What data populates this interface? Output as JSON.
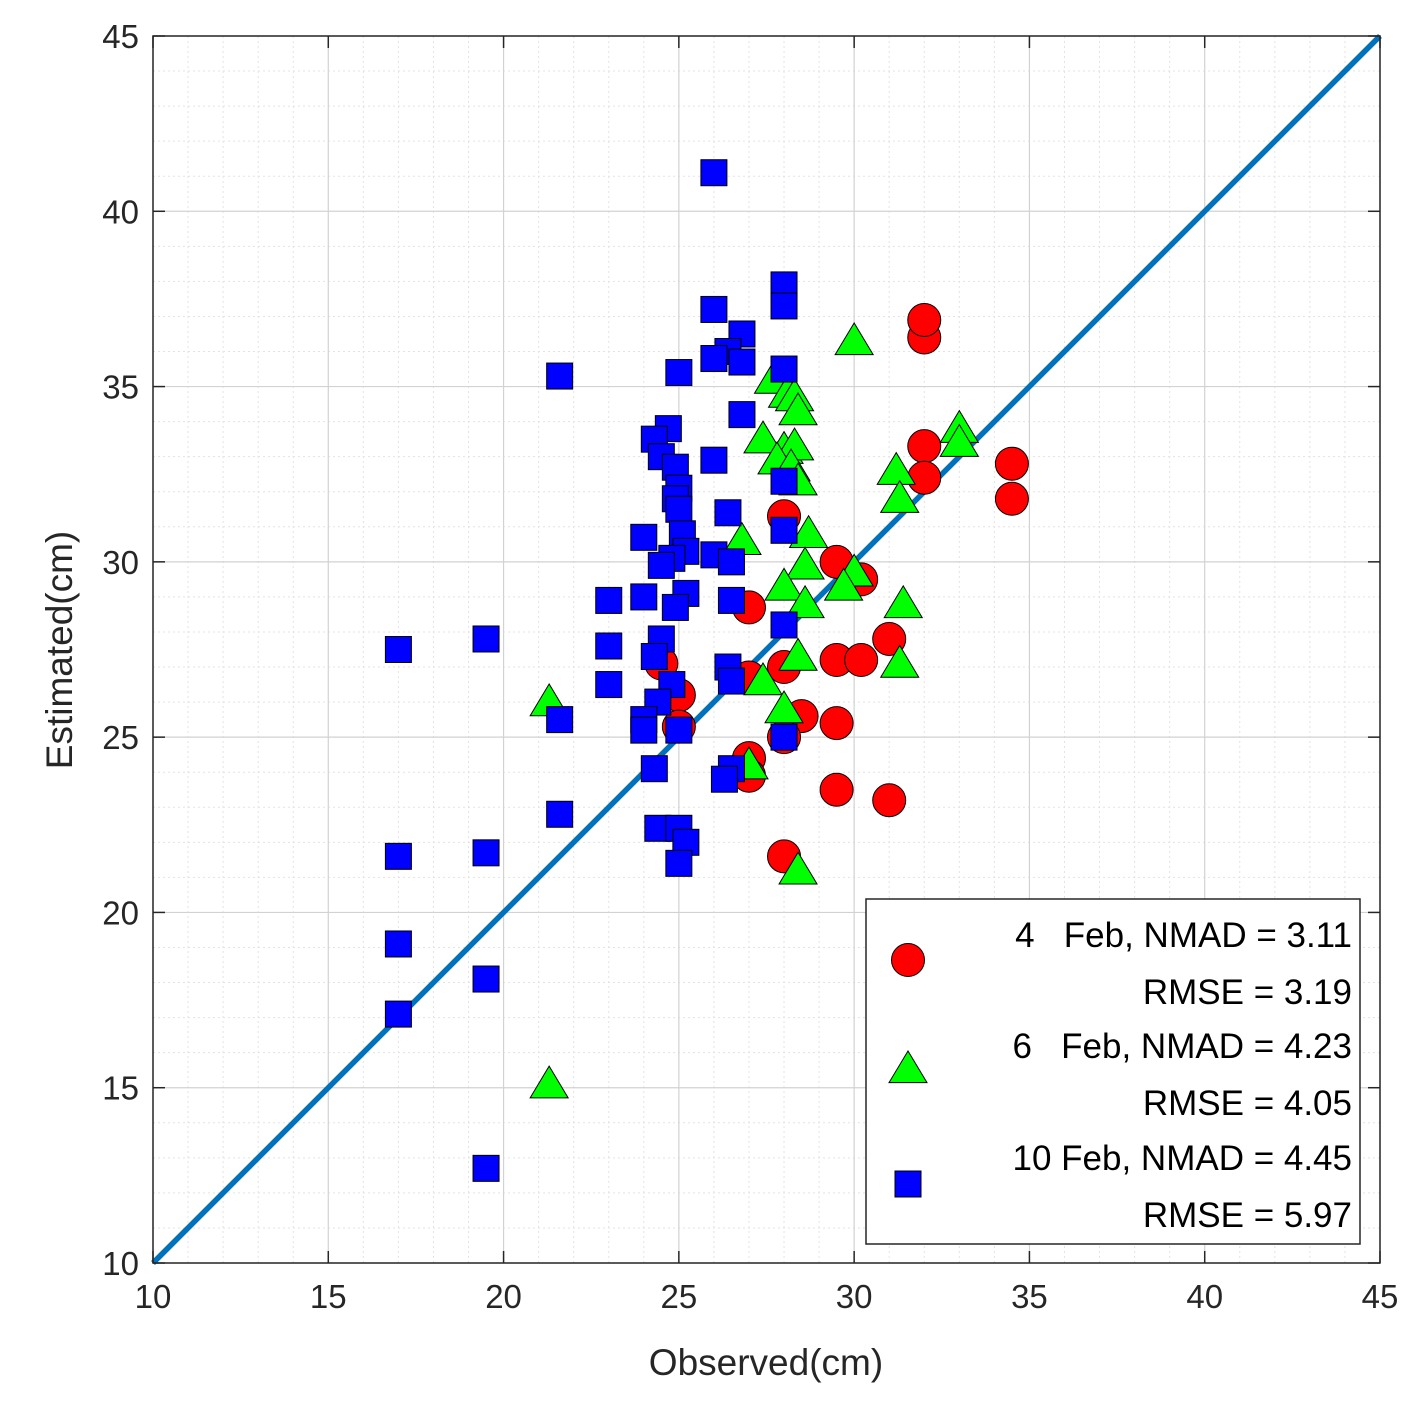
{
  "chart_data": {
    "type": "scatter",
    "xlabel": "Observed(cm)",
    "ylabel": "Estimated(cm)",
    "xlim": [
      10,
      45
    ],
    "ylim": [
      10,
      45
    ],
    "xticks": [
      "10",
      "15",
      "20",
      "25",
      "30",
      "35",
      "40",
      "45"
    ],
    "yticks": [
      "10",
      "15",
      "20",
      "25",
      "30",
      "35",
      "40",
      "45"
    ],
    "grid": true,
    "minor_grid": true,
    "legend_position": "bottom-right",
    "reference_line": {
      "name": "1:1 line",
      "x": [
        10,
        45
      ],
      "y": [
        10,
        45
      ],
      "color": "#0072BD"
    },
    "series": [
      {
        "name": "4 Feb",
        "marker": "circle",
        "color": "#ff0000",
        "legend_line1": "4   Feb, NMAD = 3.11",
        "legend_line2": "RMSE = 3.19",
        "x": [
          32.0,
          32.0,
          32.0,
          32.0,
          34.5,
          34.5,
          28.0,
          29.5,
          30.2,
          27.0,
          31.0,
          29.5,
          30.2,
          28.0,
          27.0,
          28.5,
          29.5,
          28.0,
          27.0,
          27.0,
          29.5,
          31.0,
          28.0,
          25.0,
          25.0,
          24.5
        ],
        "y": [
          36.4,
          36.9,
          33.3,
          32.4,
          32.8,
          31.8,
          31.3,
          30.0,
          29.5,
          28.7,
          27.8,
          27.2,
          27.2,
          27.0,
          26.7,
          25.6,
          25.4,
          25.0,
          24.4,
          23.9,
          23.5,
          23.2,
          21.6,
          26.2,
          25.3,
          27.1
        ]
      },
      {
        "name": "6 Feb",
        "marker": "triangle",
        "color": "#00ff00",
        "legend_line1": "6   Feb, NMAD = 4.23",
        "legend_line2": "RMSE = 4.05",
        "x": [
          30.0,
          27.7,
          28.1,
          28.3,
          28.4,
          27.4,
          28.0,
          28.3,
          27.8,
          28.2,
          28.4,
          33.0,
          33.0,
          31.2,
          31.3,
          26.8,
          28.7,
          28.6,
          28.0,
          30.0,
          29.7,
          31.4,
          28.6,
          28.4,
          31.3,
          27.4,
          28.0,
          27.0,
          28.4,
          21.3,
          21.3
        ],
        "y": [
          36.3,
          35.2,
          34.8,
          34.7,
          34.3,
          33.5,
          33.2,
          33.3,
          32.9,
          32.7,
          32.3,
          33.8,
          33.4,
          32.6,
          31.8,
          30.6,
          30.8,
          29.9,
          29.3,
          29.7,
          29.3,
          28.8,
          28.8,
          27.3,
          27.1,
          26.6,
          25.8,
          24.2,
          21.2,
          26.0,
          15.1
        ]
      },
      {
        "name": "10 Feb",
        "marker": "square",
        "color": "#0000ff",
        "legend_line1": "10 Feb, NMAD = 4.45",
        "legend_line2": "RMSE = 5.97",
        "x": [
          26.0,
          28.0,
          28.0,
          26.0,
          26.8,
          26.4,
          26.0,
          26.8,
          25.0,
          28.0,
          21.6,
          26.8,
          24.7,
          24.3,
          24.5,
          24.9,
          26.0,
          28.0,
          25.0,
          24.9,
          25.0,
          26.4,
          25.1,
          28.0,
          24.0,
          25.2,
          24.8,
          26.0,
          26.5,
          24.5,
          23.0,
          24.0,
          25.2,
          24.9,
          28.0,
          26.5,
          19.5,
          24.5,
          24.3,
          23.0,
          17.0,
          26.4,
          26.5,
          23.0,
          24.8,
          24.4,
          21.6,
          24.0,
          25.0,
          24.0,
          28.0,
          24.3,
          26.5,
          26.3,
          21.6,
          24.4,
          25.0,
          25.2,
          19.5,
          17.0,
          25.0,
          17.0,
          19.5,
          17.0,
          19.5
        ],
        "y": [
          41.1,
          37.9,
          37.3,
          37.2,
          36.5,
          36.0,
          35.8,
          35.7,
          35.4,
          35.5,
          35.3,
          34.2,
          33.8,
          33.5,
          33.0,
          32.7,
          32.9,
          32.3,
          32.1,
          31.8,
          31.5,
          31.4,
          30.8,
          30.9,
          30.7,
          30.3,
          30.1,
          30.2,
          30.0,
          29.9,
          28.9,
          29.0,
          29.1,
          28.7,
          28.2,
          28.9,
          27.8,
          27.8,
          27.3,
          27.6,
          27.5,
          27.0,
          26.6,
          26.5,
          26.5,
          26.0,
          25.5,
          25.5,
          25.2,
          25.2,
          25.0,
          24.1,
          24.1,
          23.8,
          22.8,
          22.4,
          22.4,
          22.0,
          21.7,
          21.6,
          21.4,
          19.1,
          18.1,
          17.1,
          12.7
        ]
      }
    ]
  }
}
